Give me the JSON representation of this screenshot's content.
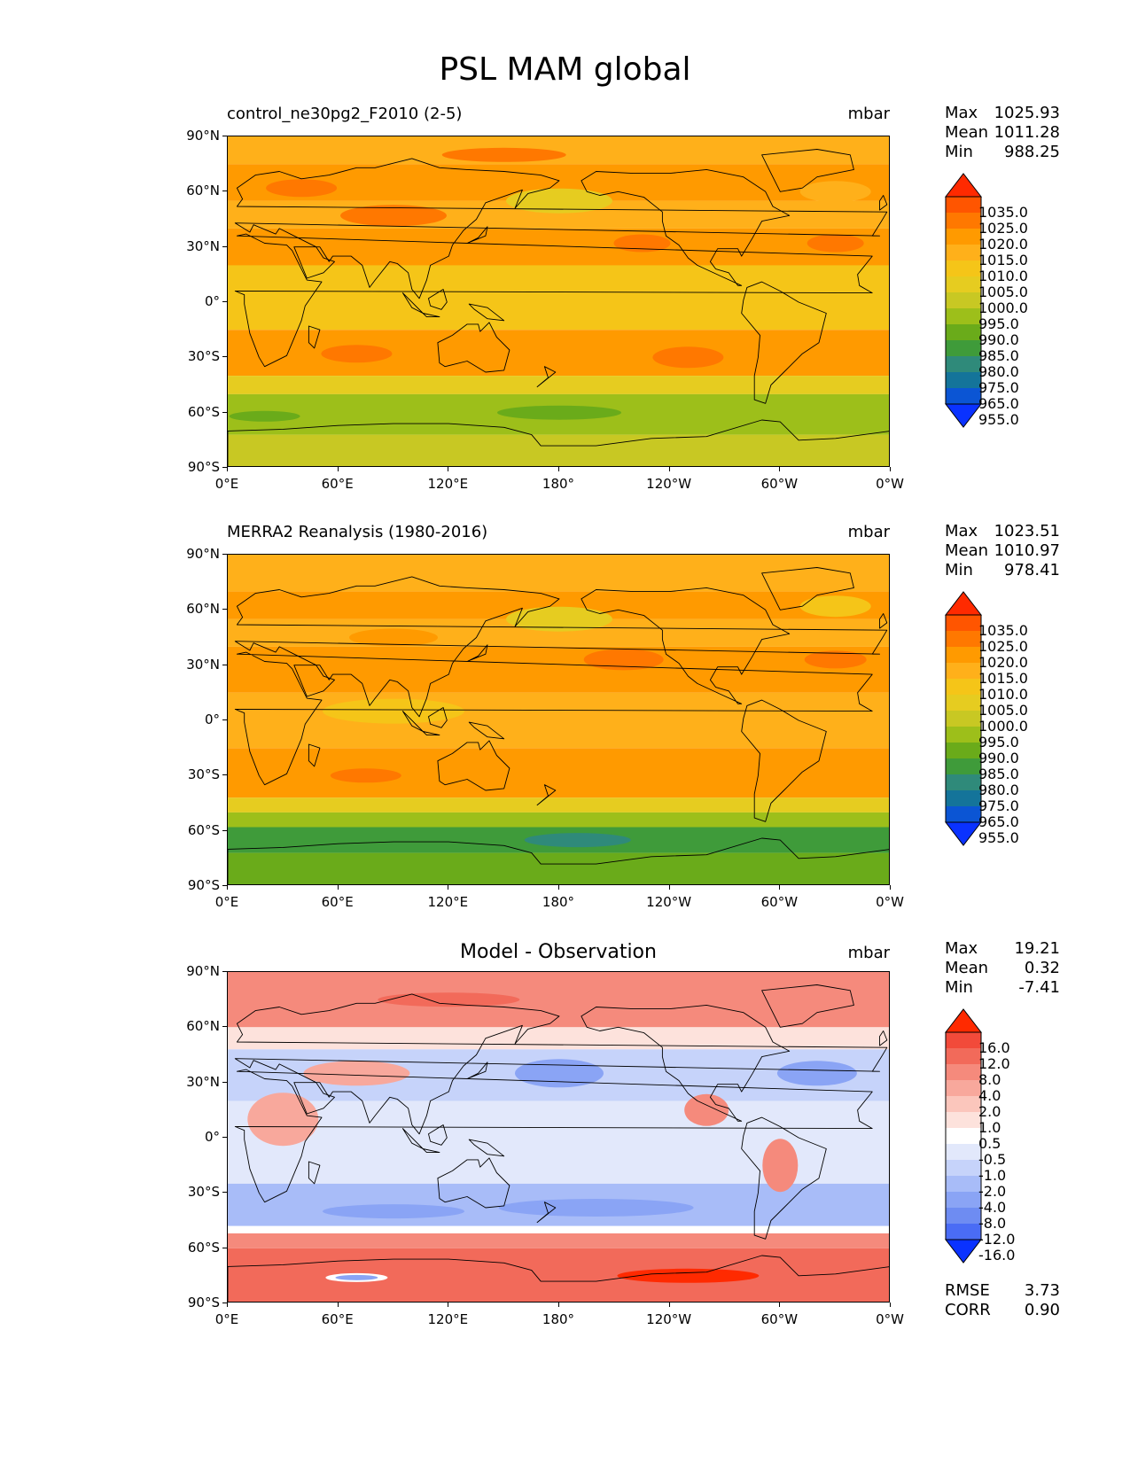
{
  "figure": {
    "title": "PSL MAM global"
  },
  "axes": {
    "y_ticks": [
      "90°N",
      "60°N",
      "30°N",
      "0°",
      "30°S",
      "60°S",
      "90°S"
    ],
    "x_ticks": [
      "0°E",
      "60°E",
      "120°E",
      "180°",
      "120°W",
      "60°W",
      "0°W"
    ]
  },
  "panels": [
    {
      "title": "control_ne30pg2_F2010 (2-5)",
      "units": "mbar",
      "stats": [
        {
          "label": "Max",
          "value": "1025.93"
        },
        {
          "label": "Mean",
          "value": "1011.28"
        },
        {
          "label": "Min",
          "value": "988.25"
        }
      ],
      "colorbar": {
        "levels": [
          "1035.0",
          "1025.0",
          "1020.0",
          "1015.0",
          "1010.0",
          "1005.0",
          "1000.0",
          "995.0",
          "990.0",
          "985.0",
          "980.0",
          "975.0",
          "965.0",
          "955.0"
        ],
        "colors": [
          "#ff2a00",
          "#ff5500",
          "#ff7800",
          "#ff9a00",
          "#ffb01a",
          "#f5c518",
          "#e6cc20",
          "#c8c823",
          "#9dbf1a",
          "#6aab1a",
          "#3f9b3a",
          "#2f8a7a",
          "#14749a",
          "#0b55d4",
          "#0a32ff"
        ]
      }
    },
    {
      "title": "MERRA2 Reanalysis (1980-2016)",
      "units": "mbar",
      "stats": [
        {
          "label": "Max",
          "value": "1023.51"
        },
        {
          "label": "Mean",
          "value": "1010.97"
        },
        {
          "label": "Min",
          "value": "978.41"
        }
      ],
      "colorbar": {
        "levels": [
          "1035.0",
          "1025.0",
          "1020.0",
          "1015.0",
          "1010.0",
          "1005.0",
          "1000.0",
          "995.0",
          "990.0",
          "985.0",
          "980.0",
          "975.0",
          "965.0",
          "955.0"
        ],
        "colors": [
          "#ff2a00",
          "#ff5500",
          "#ff7800",
          "#ff9a00",
          "#ffb01a",
          "#f5c518",
          "#e6cc20",
          "#c8c823",
          "#9dbf1a",
          "#6aab1a",
          "#3f9b3a",
          "#2f8a7a",
          "#14749a",
          "#0b55d4",
          "#0a32ff"
        ]
      }
    },
    {
      "title": "Model - Observation",
      "units": "mbar",
      "stats": [
        {
          "label": "Max",
          "value": "19.21"
        },
        {
          "label": "Mean",
          "value": "0.32"
        },
        {
          "label": "Min",
          "value": "-7.41"
        }
      ],
      "colorbar": {
        "levels": [
          "16.0",
          "12.0",
          "8.0",
          "4.0",
          "2.0",
          "1.0",
          "0.5",
          "-0.5",
          "-1.0",
          "-2.0",
          "-4.0",
          "-8.0",
          "-12.0",
          "-16.0"
        ],
        "colors": [
          "#ff2a00",
          "#f24a3a",
          "#f26a5a",
          "#f58a7c",
          "#f8a89c",
          "#fbc6bc",
          "#fde2dc",
          "#ffffff",
          "#e2e8fb",
          "#c6d3fa",
          "#a8bcf8",
          "#8aa4f5",
          "#6e8cf2",
          "#4a6cf5",
          "#0a32ff"
        ]
      },
      "metrics": [
        {
          "label": "RMSE",
          "value": "3.73"
        },
        {
          "label": "CORR",
          "value": "0.90"
        }
      ]
    }
  ]
}
